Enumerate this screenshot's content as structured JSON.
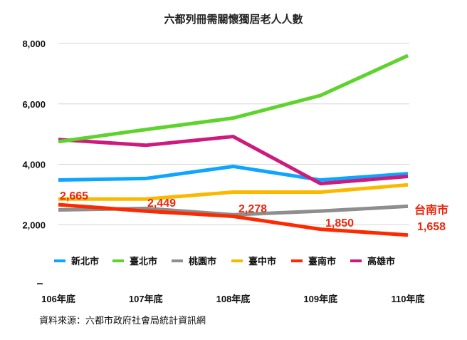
{
  "chart_data": {
    "type": "line",
    "title": "六都列冊需關懷獨居老人人數",
    "categories": [
      "106年底",
      "107年底",
      "108年底",
      "109年底",
      "110年底"
    ],
    "ylim": [
      0,
      8000
    ],
    "yticks": [
      2000,
      4000,
      6000,
      8000
    ],
    "ytick_labels": [
      "2,000",
      "4,000",
      "6,000",
      "8,000"
    ],
    "grid": true,
    "legend_position": "bottom-inside",
    "series": [
      {
        "name": "新北市",
        "color": "#0ea5ff",
        "values": [
          3480,
          3530,
          3930,
          3480,
          3690
        ]
      },
      {
        "name": "臺北市",
        "color": "#5ed32e",
        "values": [
          4750,
          5150,
          5530,
          6280,
          7600
        ]
      },
      {
        "name": "桃園市",
        "color": "#8e8e8e",
        "values": [
          2490,
          2540,
          2330,
          2450,
          2610
        ]
      },
      {
        "name": "臺中市",
        "color": "#fbb800",
        "values": [
          2850,
          2850,
          3080,
          3080,
          3320
        ]
      },
      {
        "name": "臺南市",
        "color": "#fb2a00",
        "values": [
          2665,
          2449,
          2278,
          1850,
          1658
        ],
        "data_labels": [
          "2,665",
          "2,449",
          "2,278",
          "1,850",
          "1,658"
        ]
      },
      {
        "name": "高雄市",
        "color": "#cd1a7c",
        "values": [
          4820,
          4630,
          4920,
          3360,
          3600
        ]
      }
    ],
    "annotation": "台南市",
    "source": "資料來源：六都市政府社會局統計資訊網"
  }
}
